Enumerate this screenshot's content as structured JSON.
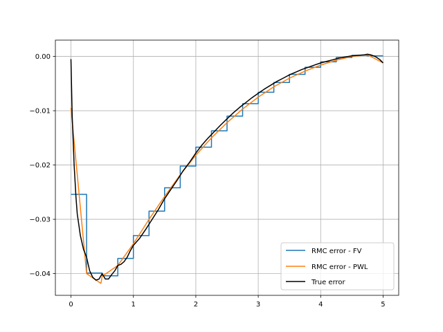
{
  "chart_data": {
    "type": "line",
    "title": "",
    "xlabel": "",
    "ylabel": "",
    "xlim": [
      -0.25,
      5.25
    ],
    "ylim": [
      -0.044,
      0.003
    ],
    "grid": true,
    "legend_position": "lower-right",
    "x_ticks": [
      0,
      1,
      2,
      3,
      4,
      5
    ],
    "x_tick_labels": [
      "0",
      "1",
      "2",
      "3",
      "4",
      "5"
    ],
    "y_ticks": [
      0.0,
      -0.01,
      -0.02,
      -0.03,
      -0.04
    ],
    "y_tick_labels": [
      "0.00",
      "−0.01",
      "−0.02",
      "−0.03",
      "−0.04"
    ],
    "legend": [
      "RMC error - FV",
      "RMC error - PWL",
      "True error"
    ],
    "series": [
      {
        "name": "RMC error - FV",
        "color": "#1f77b4",
        "step": "post",
        "x": [
          0,
          0.25,
          0.5,
          0.75,
          1.0,
          1.25,
          1.5,
          1.75,
          2.0,
          2.25,
          2.5,
          2.75,
          3.0,
          3.25,
          3.5,
          3.75,
          4.0,
          4.25,
          4.5,
          4.75,
          5.0
        ],
        "y": [
          -0.0254,
          -0.0399,
          -0.0404,
          -0.0372,
          -0.033,
          -0.0285,
          -0.0242,
          -0.0202,
          -0.0167,
          -0.0137,
          -0.011,
          -0.0087,
          -0.0066,
          -0.0048,
          -0.0033,
          -0.002,
          -0.001,
          -0.0002,
          0.0002,
          0.0001,
          0.0001
        ]
      },
      {
        "name": "RMC error - PWL",
        "color": "#ff7f0e",
        "x": [
          0,
          0.25,
          0.48,
          0.5,
          0.75,
          1.0,
          1.25,
          1.5,
          1.75,
          2.0,
          2.25,
          2.5,
          2.75,
          3.0,
          3.25,
          3.5,
          3.75,
          4.0,
          4.25,
          4.5,
          4.75,
          5.0
        ],
        "y": [
          -0.0095,
          -0.04,
          -0.0418,
          -0.0405,
          -0.0385,
          -0.0345,
          -0.03,
          -0.0258,
          -0.0218,
          -0.0182,
          -0.015,
          -0.0122,
          -0.0097,
          -0.0075,
          -0.0056,
          -0.004,
          -0.0027,
          -0.0016,
          -0.0007,
          0.0,
          0.0003,
          -0.0012
        ]
      },
      {
        "name": "True error",
        "color": "#000000",
        "x": [
          0,
          0.02,
          0.05,
          0.08,
          0.1,
          0.15,
          0.2,
          0.25,
          0.3,
          0.35,
          0.4,
          0.45,
          0.5,
          0.55,
          0.6,
          0.65,
          0.7,
          0.75,
          0.8,
          0.85,
          0.9,
          0.95,
          1.0,
          1.1,
          1.2,
          1.3,
          1.4,
          1.5,
          1.6,
          1.7,
          1.8,
          1.9,
          2.0,
          2.1,
          2.2,
          2.3,
          2.4,
          2.5,
          2.6,
          2.7,
          2.8,
          2.9,
          3.0,
          3.1,
          3.2,
          3.3,
          3.4,
          3.5,
          3.6,
          3.7,
          3.8,
          3.9,
          4.0,
          4.1,
          4.2,
          4.3,
          4.4,
          4.5,
          4.6,
          4.7,
          4.75,
          4.8,
          4.85,
          4.9,
          4.95,
          5.0
        ],
        "y": [
          -0.0005,
          -0.011,
          -0.02,
          -0.026,
          -0.029,
          -0.033,
          -0.0355,
          -0.037,
          -0.0395,
          -0.0407,
          -0.0412,
          -0.041,
          -0.04,
          -0.041,
          -0.041,
          -0.0402,
          -0.0395,
          -0.0385,
          -0.0383,
          -0.0378,
          -0.037,
          -0.0358,
          -0.0348,
          -0.0335,
          -0.0318,
          -0.03,
          -0.0282,
          -0.0262,
          -0.0245,
          -0.0228,
          -0.021,
          -0.0195,
          -0.0178,
          -0.0163,
          -0.015,
          -0.0138,
          -0.0126,
          -0.0115,
          -0.0104,
          -0.0094,
          -0.0085,
          -0.0076,
          -0.0068,
          -0.006,
          -0.0053,
          -0.0046,
          -0.004,
          -0.0034,
          -0.0029,
          -0.0024,
          -0.002,
          -0.0016,
          -0.0012,
          -0.0009,
          -0.0006,
          -0.0003,
          -0.0001,
          0.0001,
          0.0002,
          0.0003,
          0.0004,
          0.0003,
          0.0001,
          -0.0002,
          -0.0006,
          -0.0012
        ]
      }
    ]
  }
}
